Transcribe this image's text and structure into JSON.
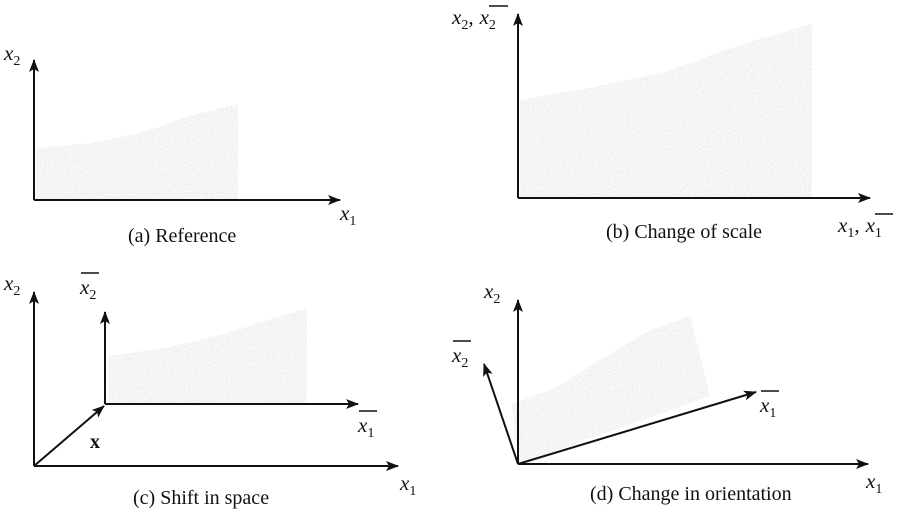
{
  "colors": {
    "ink": "#111111",
    "region_fill": "#c4c4c4"
  },
  "panels": {
    "a": {
      "caption": "(a) Reference",
      "x_axis": {
        "base": "x",
        "sub": "1"
      },
      "y_axis": {
        "base": "x",
        "sub": "2"
      }
    },
    "b": {
      "caption": "(b) Change of scale",
      "x_axis": {
        "base": "x",
        "sub": "1",
        "separator": ",",
        "bar_base": "x",
        "bar_sub": "1"
      },
      "y_axis": {
        "base": "x",
        "sub": "2",
        "separator": ",",
        "bar_base": "x",
        "bar_sub": "2"
      }
    },
    "c": {
      "caption": "(c) Shift in space",
      "x_axis": {
        "base": "x",
        "sub": "1"
      },
      "y_axis": {
        "base": "x",
        "sub": "2"
      },
      "shifted_x_axis": {
        "base": "x",
        "sub": "1"
      },
      "shifted_y_axis": {
        "base": "x",
        "sub": "2"
      },
      "shift_vector": "x"
    },
    "d": {
      "caption": "(d) Change in orientation",
      "x_axis": {
        "base": "x",
        "sub": "1"
      },
      "y_axis": {
        "base": "x",
        "sub": "2"
      },
      "rotated_x_axis": {
        "base": "x",
        "sub": "1"
      },
      "rotated_y_axis": {
        "base": "x",
        "sub": "2"
      }
    }
  }
}
